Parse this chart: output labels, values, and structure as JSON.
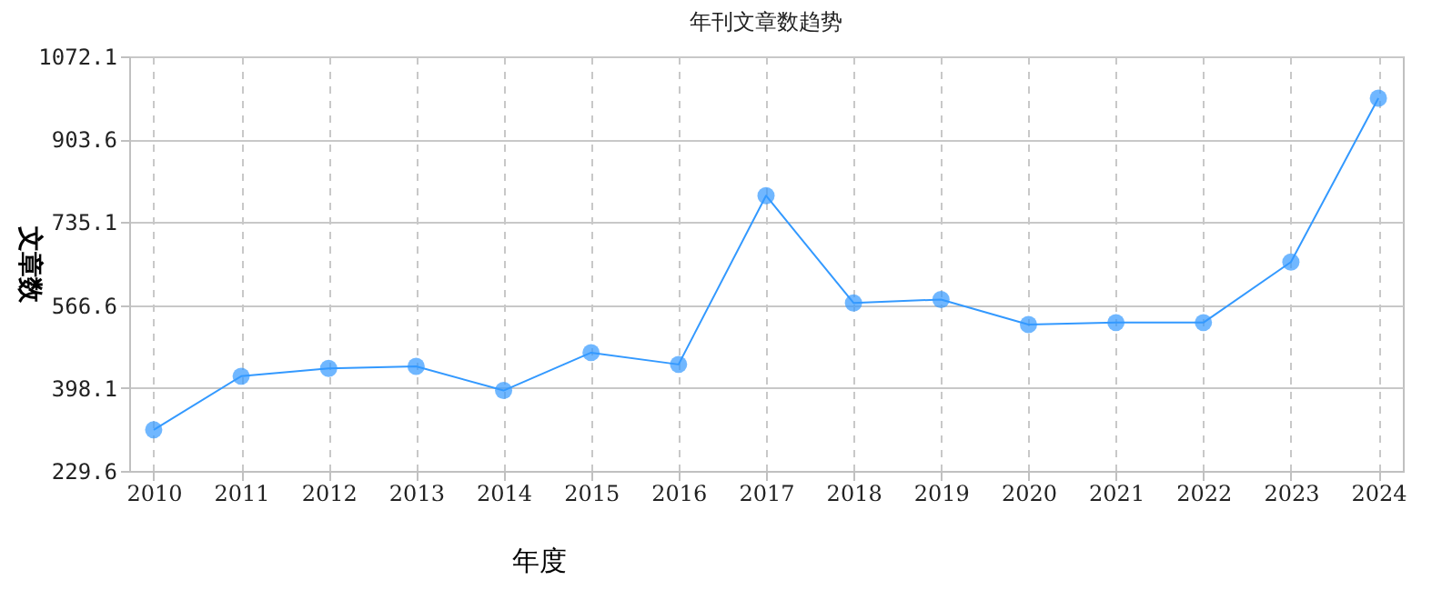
{
  "chart_data": {
    "type": "line",
    "title": "年刊文章数趋势",
    "xlabel": "年度",
    "ylabel": "文章数",
    "categories": [
      "2010",
      "2011",
      "2012",
      "2013",
      "2014",
      "2015",
      "2016",
      "2017",
      "2018",
      "2019",
      "2020",
      "2021",
      "2022",
      "2023",
      "2024"
    ],
    "series": [
      {
        "color": "#3399ff",
        "values": [
          313,
          422,
          438,
          442,
          393,
          470,
          446,
          789,
          571,
          578,
          527,
          531,
          531,
          654,
          987
        ]
      }
    ],
    "ylim": [
      229.6,
      1072.1
    ],
    "yticks": [
      229.6,
      398.1,
      566.6,
      735.1,
      903.6,
      1072.1
    ],
    "grid": true,
    "marker": "circle",
    "line_style": "solid"
  }
}
